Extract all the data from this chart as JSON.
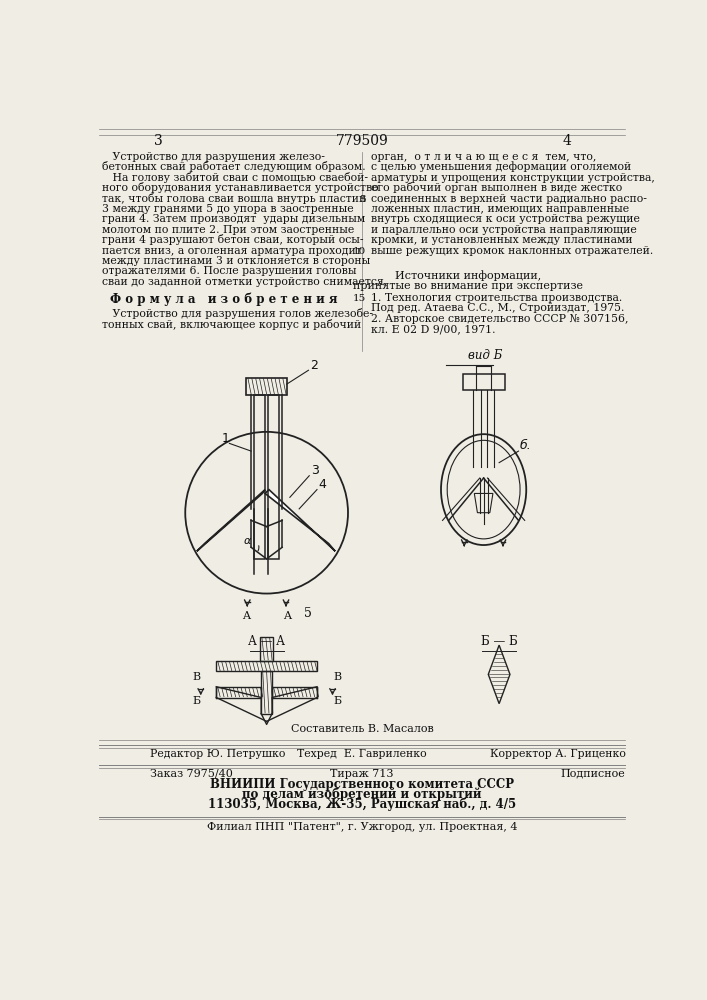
{
  "bg_color": "#f0ede4",
  "page_width": 7.07,
  "page_height": 10.0,
  "left_col_text": [
    "   Устройство для разрушения железо-",
    "бетонных свай работает следующим образом.",
    "   На голову забитой сваи с помощью сваебой-",
    "ного оборудования устанавливается устройство",
    "так, чтобы голова сваи вошла внутрь пластин",
    "3 между гранями 5 до упора в заостренные",
    "грани 4. Затем производят  удары дизельным",
    "молотом по плите 2. При этом заостренные",
    "грани 4 разрушают бетон сваи, который осы-",
    "пается вниз, а оголенная арматура проходит",
    "между пластинами 3 и отклоняется в стороны",
    "отражателями 6. После разрушения головы",
    "сваи до заданной отметки устройство снимается."
  ],
  "formula_title": "Ф о р м у л а   и з о б р е т е н и я",
  "formula_text": [
    "   Устройство для разрушения голов железобе-",
    "тонных свай, включающее корпус и рабочий"
  ],
  "right_col_text": [
    "орган,  о т л и ч а ю щ е е с я  тем, что,",
    "с целью уменьшения деформации оголяемой",
    "арматуры и упрощения конструкции устройства,",
    "его рабочий орган выполнен в виде жестко",
    "соединенных в верхней части радиально распо-",
    "ложенных пластин, имеющих направленные",
    "внутрь сходящиеся к оси устройства режущие",
    "и параллельно оси устройства направляющие",
    "кромки, и установленных между пластинами",
    "выше режущих кромок наклонных отражателей."
  ],
  "sources_title": "Источники информации,",
  "sources_subtitle": "принятые во внимание при экспертизе",
  "source1": "1. Технология строительства производства.",
  "source1b": "Под ред. Атаева С.С., М., Стройиздат, 1975.",
  "source2": "2. Авторское свидетельство СССР № 307156,",
  "source2b": "кл. Е 02 D 9/00, 1971.",
  "editor_line_left": "Редактор Ю. Петрушко",
  "editor_line_mid": "Техред  Е. Гавриленко",
  "editor_line_right": "Корректор А. Гриценко",
  "order_left": "Заказ 7975/40",
  "order_mid": "Тираж 713",
  "order_right": "Подписное",
  "org_line1": "ВНИИПИ Государственного комитета СССР",
  "org_line2": "по делам изобретений и открытий",
  "org_line3": "113035, Москва, Ж-35, Раушская наб., д. 4/5",
  "branch_line": "Филиал ПНП \"Патент\", г. Ужгород, ул. Проектная, 4",
  "composer_line": "Составитель В. Масалов",
  "text_color": "#111111"
}
